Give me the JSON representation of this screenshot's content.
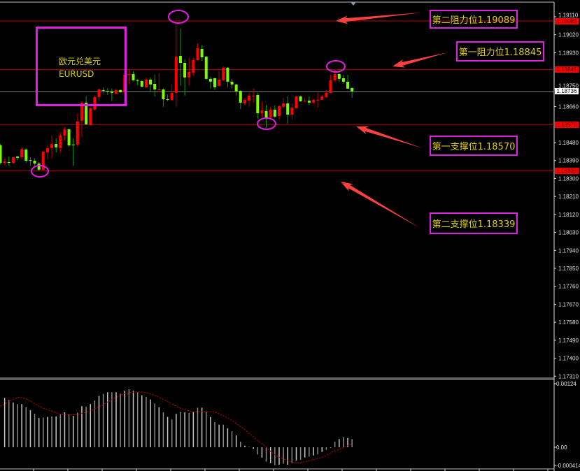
{
  "chart_data": {
    "type": "candlestick",
    "title": "欧元兑美元",
    "symbol": "EURUSD",
    "colors": {
      "bull": "#ff0000",
      "bear": "#7cfc00",
      "bull_wick": "#c00000",
      "bear_wick": "#00a000",
      "level_line": "#c00000",
      "current_line": "#808080",
      "annotation": "#e020e0",
      "arrow": "#ff4040",
      "text": "#e0d000"
    },
    "candle_format": [
      "open",
      "high",
      "low",
      "close"
    ],
    "candles": [
      [
        1.18466,
        1.18473,
        1.18371,
        1.18378
      ],
      [
        1.18378,
        1.184,
        1.18368,
        1.18385
      ],
      [
        1.18382,
        1.1841,
        1.18364,
        1.1838
      ],
      [
        1.18378,
        1.1841,
        1.18375,
        1.18406
      ],
      [
        1.1841,
        1.18414,
        1.18392,
        1.18403
      ],
      [
        1.18406,
        1.18459,
        1.18396,
        1.18448
      ],
      [
        1.18445,
        1.18452,
        1.18378,
        1.18389
      ],
      [
        1.18392,
        1.18406,
        1.18364,
        1.18391
      ],
      [
        1.18389,
        1.184,
        1.18364,
        1.18375
      ],
      [
        1.18375,
        1.18382,
        1.1834,
        1.18344
      ],
      [
        1.18344,
        1.18438,
        1.1834,
        1.18434
      ],
      [
        1.18431,
        1.18469,
        1.18396,
        1.18452
      ],
      [
        1.18452,
        1.18515,
        1.184,
        1.18473
      ],
      [
        1.18473,
        1.18501,
        1.18431,
        1.18456
      ],
      [
        1.18452,
        1.18532,
        1.18428,
        1.18515
      ],
      [
        1.18515,
        1.18557,
        1.1849,
        1.18546
      ],
      [
        1.18546,
        1.1855,
        1.18459,
        1.18466
      ],
      [
        1.1847,
        1.18501,
        1.18364,
        1.18468
      ],
      [
        1.1847,
        1.18627,
        1.18459,
        1.18585
      ],
      [
        1.18589,
        1.18687,
        1.18508,
        1.1868
      ],
      [
        1.1868,
        1.18711,
        1.18568,
        1.18571
      ],
      [
        1.18568,
        1.18659,
        1.18564,
        1.18652
      ],
      [
        1.18645,
        1.18715,
        1.18641,
        1.18708
      ],
      [
        1.18708,
        1.1875,
        1.18687,
        1.18746
      ],
      [
        1.18743,
        1.18757,
        1.18729,
        1.18741
      ],
      [
        1.18739,
        1.18753,
        1.18718,
        1.18737
      ],
      [
        1.18736,
        1.1875,
        1.18687,
        1.18729
      ],
      [
        1.18725,
        1.1875,
        1.18722,
        1.18743
      ],
      [
        1.18743,
        1.18746,
        1.18729,
        1.18732
      ],
      [
        1.18732,
        1.18827,
        1.18729,
        1.1882
      ],
      [
        1.1882,
        1.18844,
        1.18774,
        1.18823
      ],
      [
        1.18823,
        1.18837,
        1.18788,
        1.18792
      ],
      [
        1.18792,
        1.18799,
        1.18767,
        1.1879
      ],
      [
        1.18788,
        1.18792,
        1.18757,
        1.1876
      ],
      [
        1.18757,
        1.18806,
        1.18753,
        1.18795
      ],
      [
        1.18795,
        1.18806,
        1.18732,
        1.18771
      ],
      [
        1.18774,
        1.1882,
        1.18711,
        1.18746
      ],
      [
        1.18744,
        1.18827,
        1.18732,
        1.18746
      ],
      [
        1.18746,
        1.1875,
        1.18659,
        1.18697
      ],
      [
        1.18697,
        1.18722,
        1.18687,
        1.18695
      ],
      [
        1.18694,
        1.18771,
        1.1869,
        1.18729
      ],
      [
        1.18729,
        1.19089,
        1.18659,
        1.1891
      ],
      [
        1.18914,
        1.19051,
        1.18764,
        1.18879
      ],
      [
        1.18879,
        1.18897,
        1.18715,
        1.18806
      ],
      [
        1.18806,
        1.18904,
        1.18767,
        1.18834
      ],
      [
        1.1883,
        1.18904,
        1.18813,
        1.18893
      ],
      [
        1.18893,
        1.18977,
        1.1889,
        1.18953
      ],
      [
        1.18949,
        1.18967,
        1.1889,
        1.18907
      ],
      [
        1.1891,
        1.18914,
        1.18795,
        1.18799
      ],
      [
        1.18799,
        1.18809,
        1.1875,
        1.18785
      ],
      [
        1.18802,
        1.18806,
        1.18743,
        1.18757
      ],
      [
        1.18764,
        1.18837,
        1.1876,
        1.18795
      ],
      [
        1.18792,
        1.18862,
        1.18788,
        1.18855
      ],
      [
        1.18855,
        1.18858,
        1.18757,
        1.18785
      ],
      [
        1.18785,
        1.18799,
        1.1875,
        1.18771
      ],
      [
        1.18771,
        1.18774,
        1.18715,
        1.18736
      ],
      [
        1.18739,
        1.18743,
        1.18648,
        1.1868
      ],
      [
        1.18676,
        1.18704,
        1.18669,
        1.18694
      ],
      [
        1.1869,
        1.18729,
        1.18659,
        1.18715
      ],
      [
        1.18713,
        1.1875,
        1.1868,
        1.18715
      ],
      [
        1.18718,
        1.18729,
        1.18599,
        1.18627
      ],
      [
        1.18627,
        1.18687,
        1.18606,
        1.18641
      ],
      [
        1.18638,
        1.18669,
        1.18554,
        1.18603
      ],
      [
        1.18606,
        1.18659,
        1.18603,
        1.18645
      ],
      [
        1.18645,
        1.18666,
        1.18603,
        1.1861
      ],
      [
        1.18613,
        1.18669,
        1.18596,
        1.18662
      ],
      [
        1.18659,
        1.18704,
        1.18652,
        1.18676
      ],
      [
        1.18676,
        1.18711,
        1.18575,
        1.1862
      ],
      [
        1.1862,
        1.18676,
        1.18596,
        1.18655
      ],
      [
        1.18652,
        1.18715,
        1.18652,
        1.18711
      ],
      [
        1.18711,
        1.18715,
        1.18683,
        1.18687
      ],
      [
        1.18688,
        1.18704,
        1.1868,
        1.1869
      ],
      [
        1.1869,
        1.18711,
        1.18669,
        1.1868
      ],
      [
        1.1868,
        1.18697,
        1.18673,
        1.18694
      ],
      [
        1.18692,
        1.18729,
        1.18655,
        1.18694
      ],
      [
        1.18694,
        1.18718,
        1.18694,
        1.18711
      ],
      [
        1.18708,
        1.18743,
        1.18704,
        1.18729
      ],
      [
        1.18729,
        1.1882,
        1.18725,
        1.18792
      ],
      [
        1.18792,
        1.18844,
        1.18785,
        1.18823
      ],
      [
        1.18823,
        1.1883,
        1.18785,
        1.18799
      ],
      [
        1.18802,
        1.1882,
        1.18774,
        1.18785
      ],
      [
        1.18785,
        1.1882,
        1.1875,
        1.1875
      ],
      [
        1.18753,
        1.18757,
        1.18704,
        1.18736
      ]
    ],
    "price_axis": {
      "range": [
        1.1731,
        1.1911
      ],
      "ticks": [
        "1.19110",
        "1.19020",
        "1.18930",
        "1.18750",
        "1.18660",
        "1.18480",
        "1.18390",
        "1.18300",
        "1.18210",
        "1.18120",
        "1.18030",
        "1.17940",
        "1.17850",
        "1.17760",
        "1.17670",
        "1.17580",
        "1.17490",
        "1.17400",
        "1.17310"
      ]
    },
    "current_price": "1.18736",
    "levels": [
      {
        "price": "1.19089",
        "label": "第二阻力位1.19089"
      },
      {
        "price": "1.18845",
        "label": "第一阻力位1.18845"
      },
      {
        "price": "1.18570",
        "label": "第一支撑位1.18570"
      },
      {
        "price": "1.18339",
        "label": "第二支撑位1.18339"
      }
    ],
    "macd": {
      "axis_labels": [
        "0.00124",
        "0.00",
        "-0.000414"
      ],
      "range": [
        -0.000414,
        0.00124
      ],
      "histogram": [
        null,
        0.00096,
        0.00092,
        0.00087,
        0.00084,
        0.00084,
        0.00078,
        0.00072,
        0.00065,
        0.00057,
        0.00058,
        0.00059,
        0.0006,
        0.0006,
        0.00064,
        0.00068,
        0.00064,
        0.00061,
        0.00067,
        0.0008,
        0.00079,
        0.00084,
        0.00091,
        0.001,
        0.00104,
        0.00107,
        0.00107,
        0.00107,
        0.00104,
        0.0011,
        0.00113,
        0.0011,
        0.00107,
        0.00101,
        0.00098,
        0.00093,
        0.00085,
        0.00078,
        0.00068,
        0.00059,
        0.00054,
        0.00065,
        0.00069,
        0.00068,
        0.00067,
        0.00069,
        0.00077,
        0.00077,
        0.00069,
        0.00059,
        0.00049,
        0.00044,
        0.00044,
        0.00037,
        0.00031,
        0.00023,
        0.00011,
        3e-05,
        1e-05,
        -3e-05,
        -0.00014,
        -0.0002,
        -0.00028,
        -0.00031,
        -0.00035,
        -0.00034,
        -0.00032,
        -0.00034,
        -0.00031,
        -0.00026,
        -0.00024,
        -0.0002,
        -0.00018,
        -0.00016,
        -0.00014,
        -9e-05,
        -5e-05,
        -1e-05,
        0.00011,
        0.00016,
        0.0002,
        0.00018,
        0.00016
      ],
      "signal": [
        0.0008,
        0.00084,
        0.00089,
        0.00093,
        0.00097,
        0.00097,
        0.00094,
        0.0009,
        0.00085,
        0.0008,
        0.00076,
        0.00073,
        0.0007,
        0.00067,
        0.00065,
        0.00064,
        0.00063,
        0.00063,
        0.00064,
        0.00066,
        0.00068,
        0.00071,
        0.00075,
        0.00079,
        0.00083,
        0.00088,
        0.00093,
        0.00097,
        0.00101,
        0.00104,
        0.00106,
        0.00107,
        0.00108,
        0.00107,
        0.00106,
        0.00104,
        0.00101,
        0.00097,
        0.00093,
        0.00089,
        0.00084,
        0.0008,
        0.00076,
        0.00073,
        0.00071,
        0.00069,
        0.00069,
        0.00069,
        0.00069,
        0.00069,
        0.00069,
        0.00065,
        0.00061,
        0.00057,
        0.00052,
        0.00046,
        0.0004,
        0.00034,
        0.00027,
        0.0002,
        0.00013,
        7e-05,
        0.0,
        -8e-05,
        -0.00015,
        -0.00019,
        -0.00023,
        -0.00026,
        -0.00029,
        -0.00031,
        -0.0003,
        -0.00028,
        -0.00026,
        -0.00024,
        -0.00022,
        -0.0002,
        -0.00016,
        -0.00011,
        -7e-05,
        -4e-05,
        -1e-05,
        3e-05,
        6e-05
      ]
    }
  }
}
